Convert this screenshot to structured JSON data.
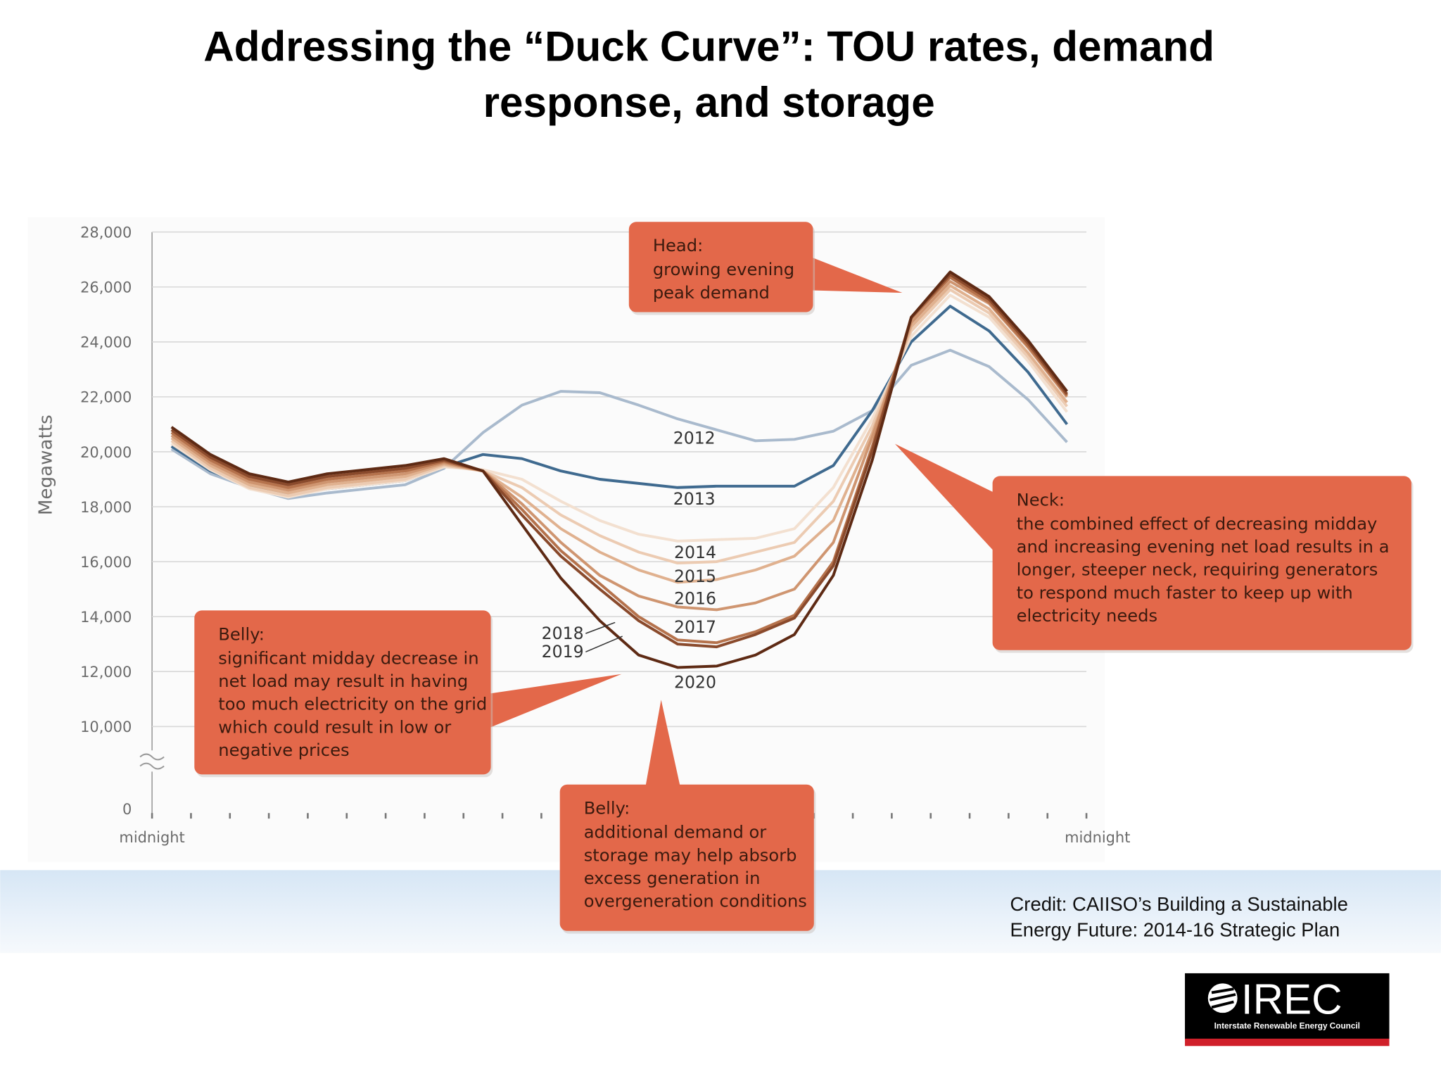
{
  "title": [
    "Addressing the “Duck Curve”: TOU rates, demand",
    "response, and storage"
  ],
  "credit": [
    "Credit: CAIISO’s Building a Sustainable",
    "Energy Future: 2014-16 Strategic Plan"
  ],
  "logo": {
    "name": "IREC",
    "full_name": "Interstate Renewable Energy Council"
  },
  "chart_data": {
    "type": "line",
    "y_label": "Megawatts",
    "xlabels": [
      "midnight",
      "midnight"
    ],
    "categories": [
      null,
      null,
      null,
      null,
      null,
      null,
      null,
      null,
      null,
      null,
      null,
      null,
      null,
      null,
      null,
      null,
      null,
      null,
      null,
      null,
      null,
      null,
      null,
      null
    ],
    "ylim": [
      7000,
      28000
    ],
    "axis_break": true,
    "yticks": [
      0,
      {
        "value": 10000,
        "label": "10,000"
      },
      {
        "value": 12000,
        "label": "12,000"
      },
      {
        "value": 14000,
        "label": "14,000"
      },
      {
        "value": 16000,
        "label": "16,000"
      },
      {
        "value": 18000,
        "label": "18,000"
      },
      {
        "value": 20000,
        "label": "20,000"
      },
      {
        "value": 22000,
        "label": "22,000"
      },
      {
        "value": 24000,
        "label": "24,000"
      },
      {
        "value": 26000,
        "label": "26,000"
      },
      {
        "value": 28000,
        "label": "28,000"
      }
    ],
    "grid": true,
    "series": [
      {
        "name": "2012",
        "color": "#a9bacd",
        "values": [
          20100,
          19200,
          18700,
          18300,
          18500,
          18650,
          18800,
          19400,
          20700,
          21700,
          22200,
          22150,
          21700,
          21200,
          20800,
          20400,
          20450,
          20750,
          21500,
          23150,
          23700,
          23100,
          21900,
          20350
        ]
      },
      {
        "name": "2013",
        "color": "#3f6a8f",
        "values": [
          20200,
          19300,
          18750,
          18400,
          18650,
          18800,
          18950,
          19450,
          19900,
          19750,
          19300,
          19000,
          18850,
          18700,
          18750,
          18750,
          18750,
          19500,
          21500,
          24000,
          25300,
          24400,
          22900,
          21000
        ]
      },
      {
        "name": "2014",
        "color": "#f3e0d0",
        "values": [
          20300,
          19350,
          18650,
          18350,
          18650,
          18800,
          18950,
          19450,
          19350,
          19000,
          18200,
          17500,
          17000,
          16750,
          16800,
          16850,
          17200,
          18700,
          21200,
          24200,
          25700,
          24900,
          23300,
          21450
        ]
      },
      {
        "name": "2015",
        "color": "#eccbb2",
        "values": [
          20400,
          19400,
          18700,
          18400,
          18700,
          18850,
          19000,
          19500,
          19300,
          18700,
          17700,
          16950,
          16350,
          15950,
          16000,
          16350,
          16700,
          18200,
          20950,
          24400,
          25900,
          25050,
          23450,
          21650
        ]
      },
      {
        "name": "2016",
        "color": "#e0b18f",
        "values": [
          20500,
          19500,
          18800,
          18500,
          18800,
          18950,
          19100,
          19550,
          19300,
          18350,
          17200,
          16350,
          15700,
          15250,
          15350,
          15700,
          16200,
          17500,
          20700,
          24550,
          26050,
          25200,
          23600,
          21800
        ]
      },
      {
        "name": "2017",
        "color": "#cf9570",
        "values": [
          20600,
          19600,
          18900,
          18600,
          18900,
          19050,
          19200,
          19600,
          19300,
          18100,
          16700,
          15500,
          14750,
          14350,
          14250,
          14500,
          15000,
          16700,
          20550,
          24700,
          26200,
          25400,
          23800,
          22000
        ]
      },
      {
        "name": "2018",
        "color": "#b5724c",
        "values": [
          20700,
          19700,
          19000,
          18700,
          19000,
          19150,
          19300,
          19650,
          19300,
          17900,
          16400,
          15200,
          14000,
          13150,
          13050,
          13450,
          14050,
          16000,
          20200,
          24850,
          26350,
          25450,
          23850,
          22050
        ]
      },
      {
        "name": "2019",
        "color": "#8a4a2c",
        "values": [
          20800,
          19800,
          19100,
          18800,
          19100,
          19250,
          19400,
          19700,
          19300,
          17700,
          16200,
          15000,
          13850,
          13000,
          12900,
          13350,
          13950,
          15850,
          20050,
          24900,
          26450,
          25550,
          23950,
          22100
        ]
      },
      {
        "name": "2020",
        "color": "#5e2a14",
        "values": [
          20900,
          19900,
          19200,
          18900,
          19200,
          19350,
          19500,
          19750,
          19300,
          17350,
          15400,
          13850,
          12600,
          12150,
          12200,
          12600,
          13350,
          15500,
          19700,
          24900,
          26550,
          25650,
          24050,
          22200
        ]
      }
    ],
    "annotations": [
      {
        "title": "Head:",
        "text": [
          "growing evening",
          "peak demand"
        ]
      },
      {
        "title": "Neck:",
        "text": [
          "the combined effect of decreasing midday",
          "and increasing evening net load results in a",
          "longer, steeper neck, requiring generators",
          "to respond much faster to keep up with",
          "electricity needs"
        ]
      },
      {
        "title": "Belly:",
        "text": [
          "significant midday decrease in",
          "net load may result in having",
          "too much electricity on the grid",
          "which could result in low or",
          "negative prices"
        ]
      },
      {
        "title": "Belly:",
        "text": [
          "additional demand or",
          "storage may help absorb",
          "excess generation in",
          "overgeneration conditions"
        ]
      }
    ]
  }
}
